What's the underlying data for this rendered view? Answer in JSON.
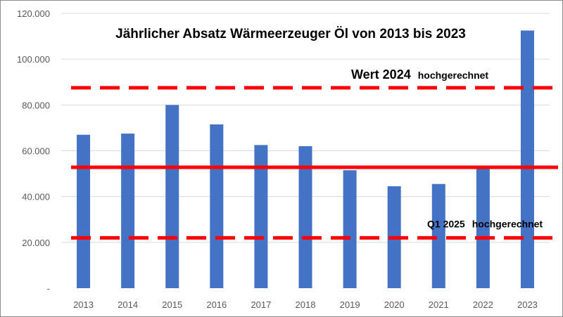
{
  "chart_data": {
    "type": "bar",
    "title": "Jährlicher Absatz Wärmeerzeuger Öl von 2013 bis 2023",
    "xlabel": "",
    "ylabel": "",
    "categories": [
      "2013",
      "2014",
      "2015",
      "2016",
      "2017",
      "2018",
      "2019",
      "2020",
      "2021",
      "2022",
      "2023"
    ],
    "values": [
      67000,
      67500,
      80000,
      71500,
      62500,
      62000,
      51500,
      44500,
      45500,
      53500,
      112500
    ],
    "ylim": [
      0,
      120000
    ],
    "yticks": [
      0,
      20000,
      40000,
      60000,
      80000,
      100000,
      120000
    ],
    "ytick_labels": [
      "-",
      "20.000",
      "40.000",
      "60.000",
      "80.000",
      "100.000",
      "120.000"
    ],
    "grid": true,
    "legend": "none",
    "colors": {
      "bar": "#4472c4",
      "reference_line": "#ff0000"
    },
    "reference_lines": [
      {
        "value": 87500,
        "style": "dashed",
        "label_main": "Wert 2024",
        "label_sub": "hochgerechnet"
      },
      {
        "value": 52800,
        "style": "solid",
        "label_main": "",
        "label_sub": ""
      },
      {
        "value": 22000,
        "style": "dashed",
        "label_main": "Q1 2025",
        "label_sub": "hochgerechnet"
      }
    ]
  }
}
